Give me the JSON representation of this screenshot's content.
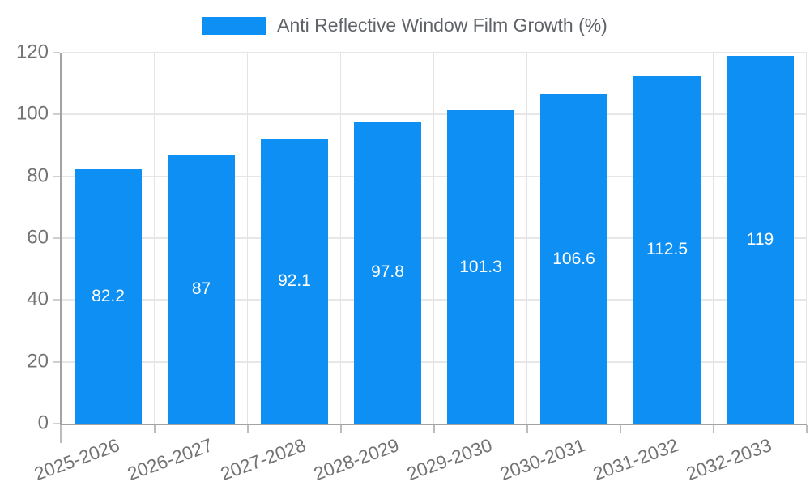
{
  "legend": {
    "label": "Anti Reflective Window Film Growth (%)",
    "position": "top-center"
  },
  "colors": {
    "bar": "#0d8ff4",
    "grid": "#e7e7e7",
    "axis": "#a3a3a3",
    "tick_text": "#737373",
    "legend_text": "#5f6368",
    "value_text": "#ffffff",
    "background": "#ffffff"
  },
  "chart_data": {
    "type": "bar",
    "title": "Anti Reflective Window Film Growth (%)",
    "categories": [
      "2025-2026",
      "2026-2027",
      "2027-2028",
      "2028-2029",
      "2029-2030",
      "2030-2031",
      "2031-2032",
      "2032-2033"
    ],
    "values": [
      82.2,
      87,
      92.1,
      97.8,
      101.3,
      106.6,
      112.5,
      119
    ],
    "value_labels": [
      "82.2",
      "87",
      "92.1",
      "97.8",
      "101.3",
      "106.6",
      "112.5",
      "119"
    ],
    "xlabel": "",
    "ylabel": "",
    "ylim": [
      0,
      120
    ],
    "yticks": [
      0,
      20,
      40,
      60,
      80,
      100,
      120
    ],
    "grid": true,
    "x_label_rotation_deg": -20,
    "legend_position": "top-center",
    "series_color": "#0d8ff4"
  }
}
